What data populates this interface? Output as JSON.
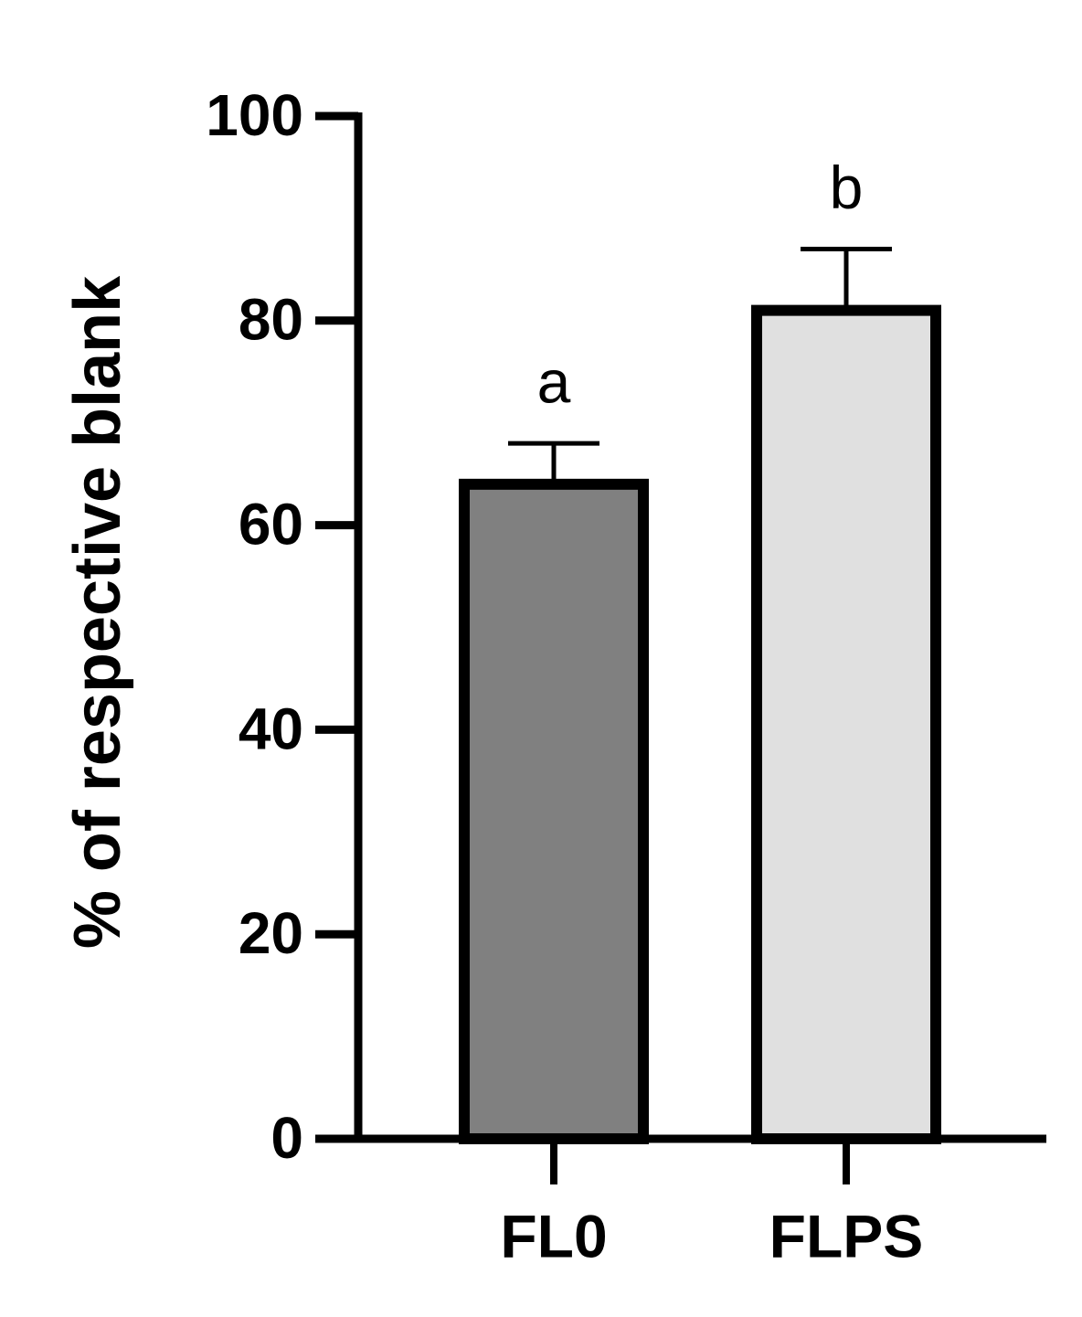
{
  "chart_data": {
    "type": "bar",
    "ylabel": "% of respective blank",
    "categories": [
      "FL0",
      "FLPS"
    ],
    "values": [
      64,
      81
    ],
    "errors": [
      4,
      6
    ],
    "annotations": [
      "a",
      "b"
    ],
    "colors": [
      "#808080",
      "#e0e0e0"
    ],
    "ylim": [
      0,
      100
    ],
    "yticks": [
      0,
      20,
      40,
      60,
      80,
      100
    ]
  }
}
